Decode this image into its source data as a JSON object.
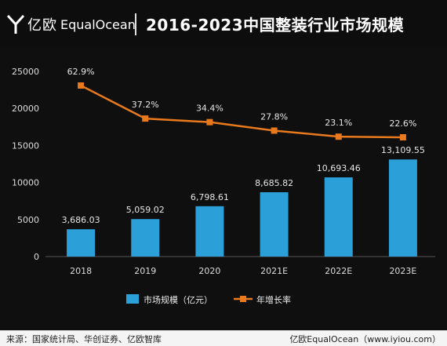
{
  "header": {
    "brand_cn": "亿欧",
    "brand_en": "EqualOcean",
    "title": "2016-2023中国整装行业市场规模"
  },
  "chart_data": {
    "type": "bar",
    "categories": [
      "2018",
      "2019",
      "2020",
      "2021E",
      "2022E",
      "2023E"
    ],
    "series": [
      {
        "name": "市场规模（亿元）",
        "type": "bar",
        "values": [
          3686.03,
          5059.02,
          6798.61,
          8685.82,
          10693.46,
          13109.55
        ],
        "labels": [
          "3,686.03",
          "5,059.02",
          "6,798.61",
          "8,685.82",
          "10,693.46",
          "13,109.55"
        ],
        "color": "#2b9fd8"
      },
      {
        "name": "年增长率",
        "type": "line",
        "values": [
          62.9,
          37.2,
          34.4,
          27.8,
          23.1,
          22.6
        ],
        "labels": [
          "62.9%",
          "37.2%",
          "34.4%",
          "27.8%",
          "23.1%",
          "22.6%"
        ],
        "color": "#e8791d"
      }
    ],
    "ylim": [
      0,
      25000
    ],
    "yticks": [
      "0",
      "5000",
      "10000",
      "15000",
      "20000",
      "25000"
    ],
    "ytick_values": [
      0,
      5000,
      10000,
      15000,
      20000,
      25000
    ],
    "legend_position": "bottom"
  },
  "footer": {
    "source": "来源：国家统计局、华创证券、亿欧智库",
    "credit": "亿欧EqualOcean（www.iyiou.com）"
  }
}
